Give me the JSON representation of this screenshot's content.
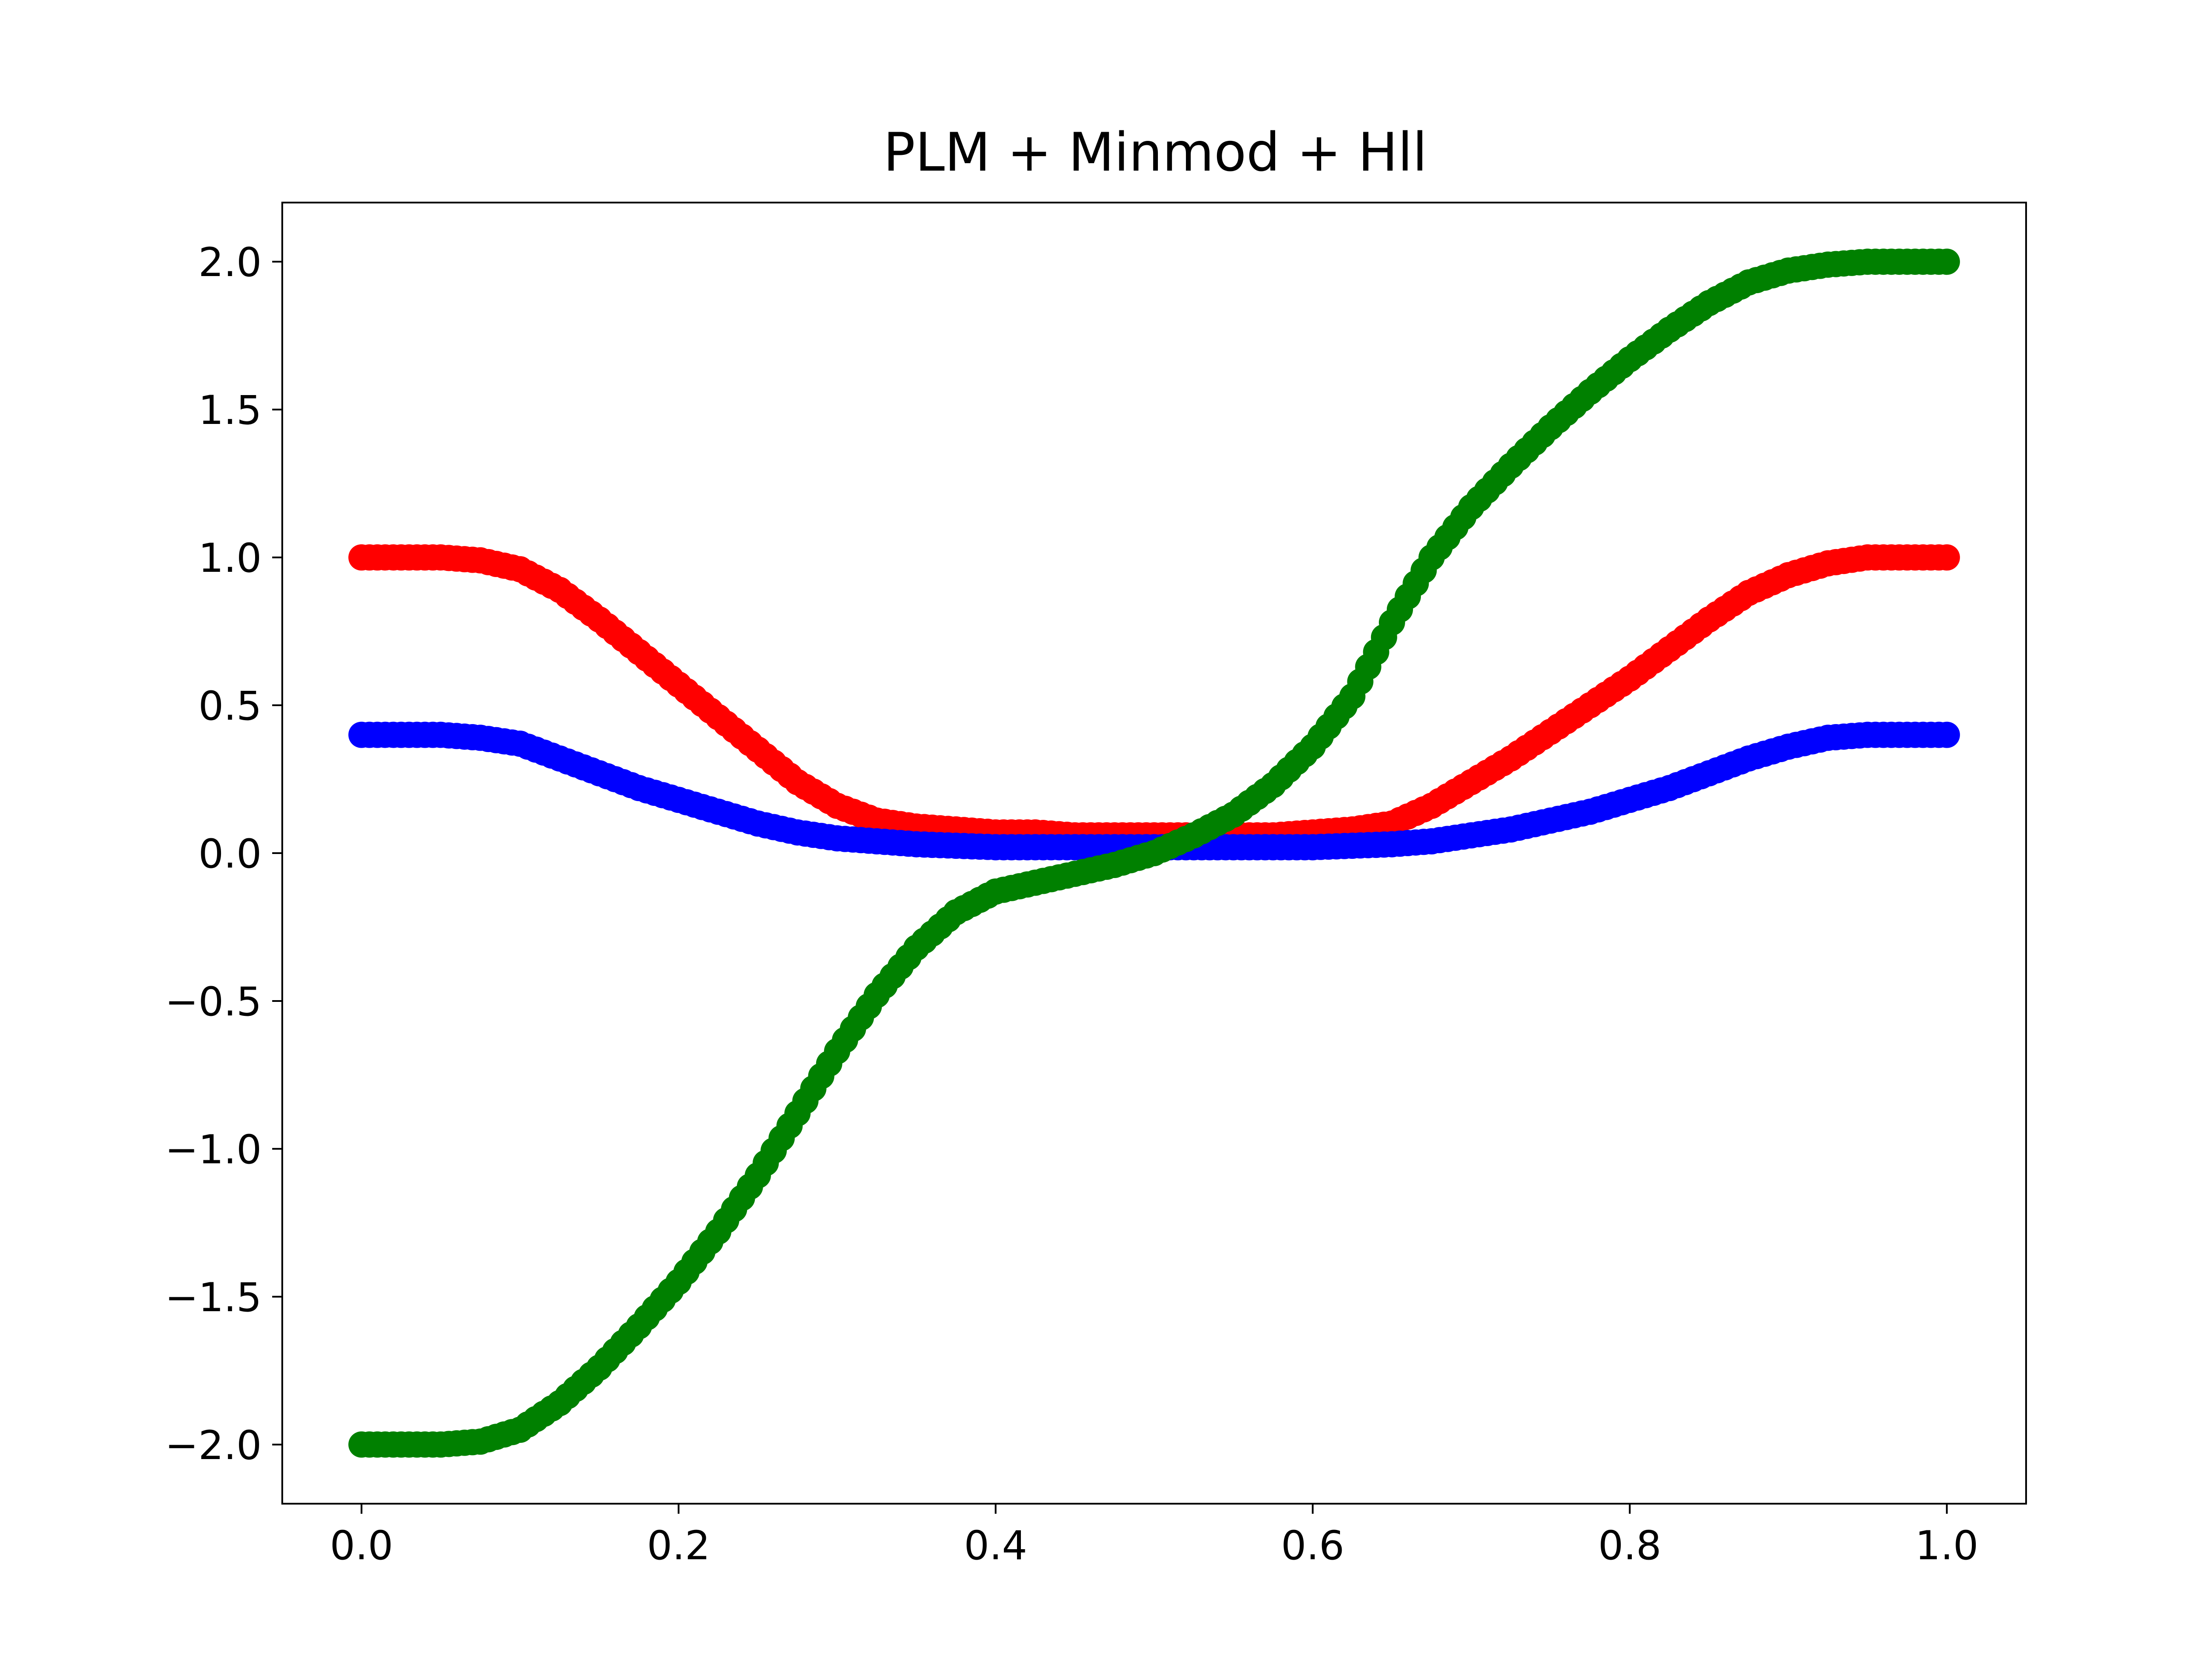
{
  "chart_data": {
    "type": "scatter",
    "title": "PLM + Minmod + Hll",
    "xlabel": "",
    "ylabel": "",
    "xlim": [
      -0.05,
      1.05
    ],
    "ylim": [
      -2.2,
      2.2
    ],
    "xticks": [
      0.0,
      0.2,
      0.4,
      0.6,
      0.8,
      1.0
    ],
    "xtick_labels": [
      "0.0",
      "0.2",
      "0.4",
      "0.6",
      "0.8",
      "1.0"
    ],
    "yticks": [
      -2.0,
      -1.5,
      -1.0,
      -0.5,
      0.0,
      0.5,
      1.0,
      1.5,
      2.0
    ],
    "ytick_labels": [
      "−2.0",
      "−1.5",
      "−1.0",
      "−0.5",
      "0.0",
      "0.5",
      "1.0",
      "1.5",
      "2.0"
    ],
    "grid": false,
    "legend": "none",
    "series": [
      {
        "color": "#ff0000",
        "x": [
          0.0,
          0.025,
          0.05,
          0.075,
          0.1,
          0.125,
          0.15,
          0.175,
          0.2,
          0.225,
          0.25,
          0.275,
          0.3,
          0.325,
          0.35,
          0.375,
          0.4,
          0.425,
          0.45,
          0.475,
          0.5,
          0.525,
          0.55,
          0.575,
          0.6,
          0.625,
          0.65,
          0.675,
          0.7,
          0.725,
          0.75,
          0.775,
          0.8,
          0.825,
          0.85,
          0.875,
          0.9,
          0.925,
          0.95,
          0.975,
          1.0
        ],
        "y": [
          1.0,
          1.0,
          1.0,
          0.99,
          0.96,
          0.89,
          0.79,
          0.68,
          0.57,
          0.46,
          0.35,
          0.24,
          0.16,
          0.11,
          0.09,
          0.08,
          0.07,
          0.07,
          0.06,
          0.06,
          0.06,
          0.06,
          0.06,
          0.06,
          0.07,
          0.08,
          0.1,
          0.16,
          0.24,
          0.32,
          0.41,
          0.5,
          0.59,
          0.69,
          0.79,
          0.88,
          0.94,
          0.98,
          1.0,
          1.0,
          1.0
        ]
      },
      {
        "color": "#0000ff",
        "x": [
          0.0,
          0.025,
          0.05,
          0.075,
          0.1,
          0.125,
          0.15,
          0.175,
          0.2,
          0.225,
          0.25,
          0.275,
          0.3,
          0.325,
          0.35,
          0.375,
          0.4,
          0.425,
          0.45,
          0.475,
          0.5,
          0.525,
          0.55,
          0.575,
          0.6,
          0.625,
          0.65,
          0.675,
          0.7,
          0.725,
          0.75,
          0.775,
          0.8,
          0.825,
          0.85,
          0.875,
          0.9,
          0.925,
          0.95,
          0.975,
          1.0
        ],
        "y": [
          0.4,
          0.4,
          0.4,
          0.39,
          0.37,
          0.32,
          0.27,
          0.22,
          0.18,
          0.14,
          0.1,
          0.07,
          0.05,
          0.04,
          0.03,
          0.025,
          0.02,
          0.02,
          0.02,
          0.02,
          0.02,
          0.02,
          0.02,
          0.02,
          0.02,
          0.025,
          0.03,
          0.04,
          0.06,
          0.08,
          0.11,
          0.14,
          0.18,
          0.22,
          0.27,
          0.32,
          0.36,
          0.39,
          0.4,
          0.4,
          0.4
        ]
      },
      {
        "color": "#008000",
        "x": [
          0.0,
          0.025,
          0.05,
          0.075,
          0.1,
          0.125,
          0.15,
          0.175,
          0.2,
          0.225,
          0.25,
          0.275,
          0.3,
          0.325,
          0.35,
          0.375,
          0.4,
          0.425,
          0.45,
          0.475,
          0.5,
          0.525,
          0.55,
          0.575,
          0.6,
          0.625,
          0.65,
          0.675,
          0.7,
          0.725,
          0.75,
          0.775,
          0.8,
          0.825,
          0.85,
          0.875,
          0.9,
          0.925,
          0.95,
          0.975,
          1.0
        ],
        "y": [
          -2.0,
          -2.0,
          -2.0,
          -1.99,
          -1.95,
          -1.86,
          -1.74,
          -1.6,
          -1.45,
          -1.28,
          -1.09,
          -0.88,
          -0.67,
          -0.48,
          -0.32,
          -0.2,
          -0.13,
          -0.1,
          -0.07,
          -0.04,
          0.0,
          0.06,
          0.13,
          0.23,
          0.36,
          0.53,
          0.78,
          1.0,
          1.17,
          1.31,
          1.44,
          1.56,
          1.67,
          1.77,
          1.86,
          1.93,
          1.97,
          1.99,
          2.0,
          2.0,
          2.0
        ]
      }
    ]
  }
}
